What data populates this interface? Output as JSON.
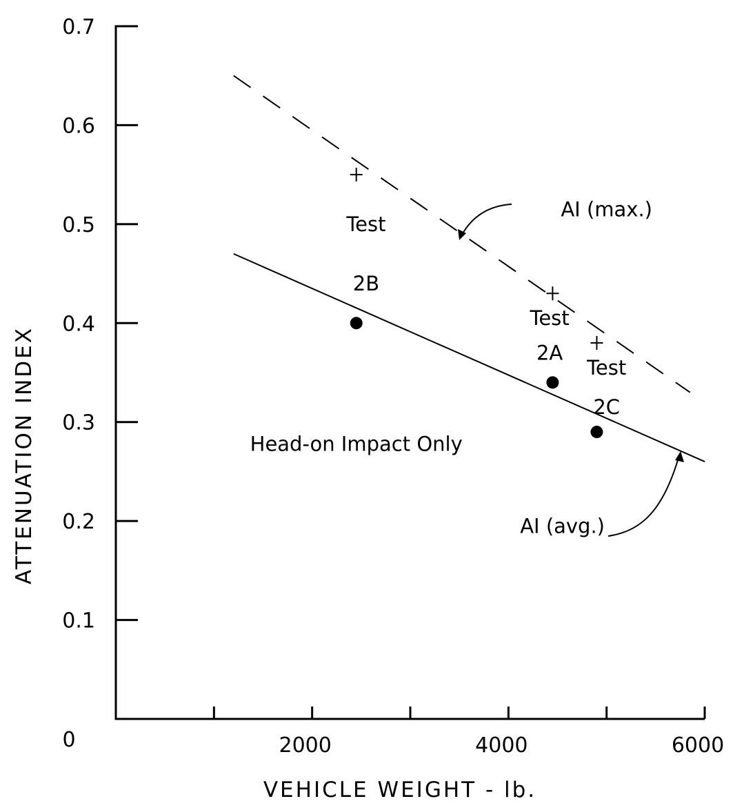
{
  "chart_data": {
    "type": "scatter",
    "xlabel": "VEHICLE WEIGHT - lb.",
    "ylabel": "ATTENUATION INDEX",
    "xlim": [
      0,
      6000
    ],
    "ylim": [
      0,
      0.7
    ],
    "grid": false,
    "origin_label": "0",
    "x_ticks": [
      1000,
      2000,
      3000,
      4000,
      5000,
      6000
    ],
    "x_tick_labels": [
      {
        "value": 2000,
        "label": "2000"
      },
      {
        "value": 4000,
        "label": "4000"
      },
      {
        "value": 6000,
        "label": "6000"
      }
    ],
    "y_ticks": [
      {
        "value": 0.1,
        "label": "0.1"
      },
      {
        "value": 0.2,
        "label": "0.2"
      },
      {
        "value": 0.3,
        "label": "0.3"
      },
      {
        "value": 0.4,
        "label": "0.4"
      },
      {
        "value": 0.5,
        "label": "0.5"
      },
      {
        "value": 0.6,
        "label": "0.6"
      },
      {
        "value": 0.7,
        "label": "0.7"
      }
    ],
    "series": [
      {
        "name": "AI (max.)",
        "marker": "plus",
        "x": [
          2450,
          4450,
          4900
        ],
        "y": [
          0.55,
          0.43,
          0.38
        ]
      },
      {
        "name": "AI (avg.)",
        "marker": "dot",
        "x": [
          2450,
          4450,
          4900
        ],
        "y": [
          0.4,
          0.34,
          0.29
        ]
      }
    ],
    "fit_lines": [
      {
        "name": "AI (max.)",
        "style": "dashed",
        "x": [
          1200,
          5850
        ],
        "y": [
          0.65,
          0.33
        ]
      },
      {
        "name": "AI (avg.)",
        "style": "solid",
        "x": [
          1200,
          6000
        ],
        "y": [
          0.47,
          0.26
        ]
      }
    ],
    "annotations": [
      {
        "id": "test-2b",
        "lines": [
          "Test",
          "2B"
        ],
        "x": 2550,
        "y": [
          0.5,
          0.44
        ]
      },
      {
        "id": "test-2a",
        "lines": [
          "Test",
          "2A"
        ],
        "x": 4420,
        "y": [
          0.405,
          0.37
        ]
      },
      {
        "id": "test-2c",
        "lines": [
          "Test",
          "2C"
        ],
        "x": 5000,
        "y": [
          0.355,
          0.315
        ]
      },
      {
        "id": "head-on",
        "lines": [
          "Head-on  Impact  Only"
        ],
        "x": 2450,
        "y": [
          0.278
        ]
      },
      {
        "id": "ai-max",
        "lines": [
          "AI (max.)"
        ],
        "x": 5000,
        "y": [
          0.515
        ]
      },
      {
        "id": "ai-avg",
        "lines": [
          "AI (avg.)"
        ],
        "x": 4550,
        "y": [
          0.195
        ]
      }
    ]
  }
}
